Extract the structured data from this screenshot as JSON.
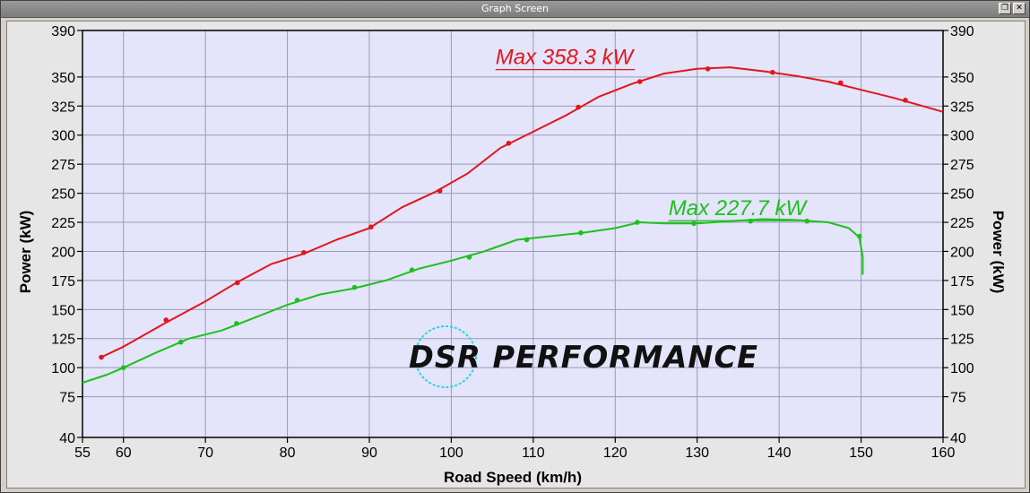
{
  "window": {
    "title": "Graph Screen",
    "restore_icon": "restore-icon",
    "close_icon": "close-icon"
  },
  "logo": {
    "text": "DSR PERFORMANCE",
    "ring_color": "#29d4e6"
  },
  "colors": {
    "plot_background": "#e4e4fa",
    "grid": "#9a9ab4",
    "series_red": "#e2151c",
    "series_green": "#1cc11c"
  },
  "chart_data": {
    "type": "line",
    "title": "",
    "xlabel": "Road Speed (km/h)",
    "ylabel": "Power (kW)",
    "ylabel_right": "Power (kW)",
    "xlim": [
      55,
      160
    ],
    "ylim": [
      40,
      390
    ],
    "x_ticks": [
      55,
      60,
      70,
      80,
      90,
      100,
      110,
      120,
      130,
      140,
      150,
      160
    ],
    "y_ticks": [
      40,
      75,
      100,
      125,
      150,
      175,
      200,
      225,
      250,
      275,
      300,
      325,
      350,
      390
    ],
    "grid": true,
    "annotations": [
      {
        "text": "Max 358.3 kW",
        "series": 0,
        "x": 105.4,
        "y": 361
      },
      {
        "text": "Max 227.7 kW",
        "series": 1,
        "x": 126.5,
        "y": 231
      }
    ],
    "series": [
      {
        "color": "#e2151c",
        "x": [
          57.3,
          60,
          65,
          70,
          74,
          78,
          82,
          86,
          90,
          94,
          98,
          102,
          106,
          110,
          114,
          118,
          122,
          126,
          130,
          134,
          138,
          142,
          146,
          150,
          154,
          158,
          160
        ],
        "y": [
          109,
          118,
          138,
          157,
          174,
          189,
          198,
          210,
          220,
          238,
          251,
          267,
          289,
          303,
          317,
          333,
          344,
          353,
          357,
          358.3,
          355,
          351,
          346,
          339,
          332,
          324,
          320
        ],
        "markers_x": [
          57.3,
          65.2,
          73.9,
          82.0,
          90.2,
          98.6,
          107.0,
          115.5,
          123.0,
          131.3,
          139.2,
          147.5,
          155.4
        ],
        "markers_y": [
          109,
          141,
          173,
          199,
          221,
          252,
          293,
          324,
          346,
          357,
          354,
          345,
          330
        ]
      },
      {
        "color": "#1cc11c",
        "x": [
          55,
          58,
          60,
          64,
          68,
          72,
          76,
          80,
          84,
          88,
          92,
          96,
          100,
          104,
          108,
          112,
          116,
          120,
          123,
          126,
          130,
          134,
          138,
          142,
          146,
          148.5,
          149.8,
          150.2,
          150.2
        ],
        "y": [
          87,
          94,
          100,
          113,
          125,
          132,
          143,
          154,
          163,
          168,
          175,
          185,
          192,
          200,
          210,
          213,
          216,
          220,
          225,
          224,
          224,
          226,
          227.7,
          227,
          225,
          220,
          212,
          195,
          180
        ],
        "markers_x": [
          60.0,
          67.0,
          73.8,
          81.2,
          88.2,
          95.2,
          102.2,
          109.2,
          115.8,
          122.7,
          129.6,
          136.5,
          143.4,
          149.8
        ],
        "markers_y": [
          100,
          122,
          138,
          158,
          169,
          184,
          195,
          210,
          216,
          225,
          224,
          226,
          226,
          213
        ]
      }
    ]
  }
}
